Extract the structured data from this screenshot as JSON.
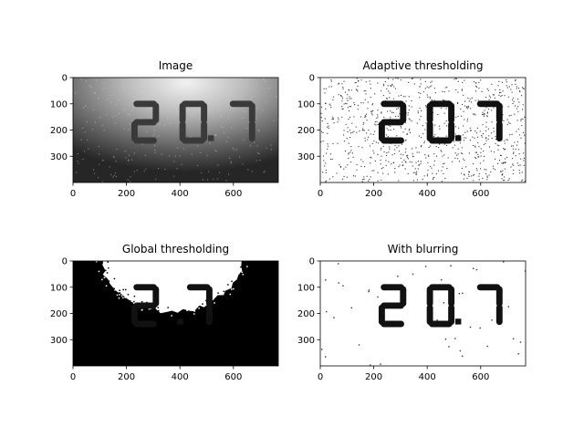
{
  "chart_data": [
    {
      "type": "image",
      "title": "Image",
      "xticks": [
        0,
        200,
        400,
        600
      ],
      "yticks": [
        0,
        100,
        200,
        300
      ],
      "xlim": [
        0,
        768
      ],
      "ylim": [
        400,
        0
      ],
      "readout": "20.7",
      "style": "grayscale-vignette"
    },
    {
      "type": "image",
      "title": "Adaptive thresholding",
      "xticks": [
        0,
        200,
        400,
        600
      ],
      "yticks": [
        0,
        100,
        200,
        300
      ],
      "xlim": [
        0,
        768
      ],
      "ylim": [
        400,
        0
      ],
      "readout": "20.7",
      "style": "adaptive-noisy"
    },
    {
      "type": "image",
      "title": "Global thresholding",
      "xticks": [
        0,
        200,
        400,
        600
      ],
      "yticks": [
        0,
        100,
        200,
        300
      ],
      "xlim": [
        0,
        768
      ],
      "ylim": [
        400,
        0
      ],
      "readout": "2.7",
      "style": "global-threshold"
    },
    {
      "type": "image",
      "title": "With blurring",
      "xticks": [
        0,
        200,
        400,
        600
      ],
      "yticks": [
        0,
        100,
        200,
        300
      ],
      "xlim": [
        0,
        768
      ],
      "ylim": [
        400,
        0
      ],
      "readout": "20.7",
      "style": "clean"
    }
  ],
  "colors": {
    "ink": "#111111",
    "background": "#ffffff",
    "frame": "#000000"
  }
}
